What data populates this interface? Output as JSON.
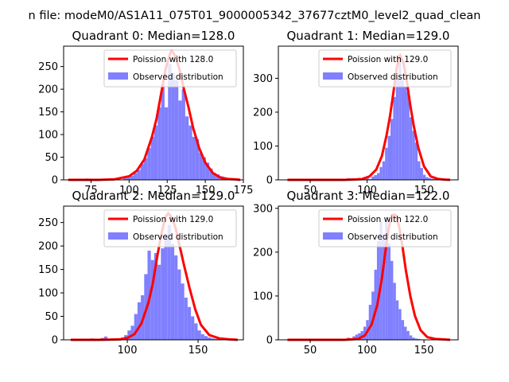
{
  "figure": {
    "suptitle": "n file: modeM0/AS1A11_075T01_9000005342_37677cztM0_level2_quad_clean"
  },
  "legend_labels": [
    "Poission with {median}",
    "Observed distribution"
  ],
  "colors": {
    "poisson": "#ff0000",
    "observed": "#8080ff"
  },
  "chart_data": [
    {
      "type": "bar",
      "title": "Quadrant 0: Median=128.0",
      "median": 128.0,
      "legend_poisson": "Poission with 128.0",
      "legend_observed": "Observed distribution",
      "xlim": [
        57,
        175
      ],
      "ylim": [
        0,
        295
      ],
      "xticks": [
        75,
        100,
        125,
        150,
        175
      ],
      "yticks": [
        0,
        50,
        100,
        150,
        200,
        250
      ],
      "hist_range": [
        60,
        173
      ],
      "n_bins": 50,
      "hist_peak": 250,
      "hist_center": 128,
      "hist_sigma": 11.5,
      "hist_noise": [
        0,
        1,
        0,
        0,
        2,
        3,
        0,
        0,
        1,
        2,
        0,
        1,
        0,
        1,
        0,
        0,
        4,
        6,
        9,
        15,
        22,
        35,
        48,
        70,
        95,
        120,
        160,
        210,
        160,
        255,
        235,
        220,
        175,
        200,
        140,
        120,
        95,
        90,
        60,
        50,
        38,
        25,
        15,
        12,
        8,
        5,
        3,
        2,
        1,
        0
      ],
      "curve_x": [
        60,
        70,
        80,
        90,
        100,
        105,
        110,
        115,
        118,
        121,
        124,
        127,
        128,
        130,
        133,
        136,
        139,
        142,
        146,
        150,
        155,
        160,
        165,
        170,
        173
      ],
      "curve_y": [
        0,
        0,
        0,
        1,
        8,
        20,
        45,
        95,
        135,
        190,
        245,
        280,
        285,
        275,
        245,
        200,
        160,
        115,
        70,
        38,
        15,
        5,
        2,
        1,
        0
      ]
    },
    {
      "type": "bar",
      "title": "Quadrant 1: Median=129.0",
      "median": 129.0,
      "legend_poisson": "Poission with 129.0",
      "legend_observed": "Observed distribution",
      "xlim": [
        22,
        180
      ],
      "ylim": [
        0,
        395
      ],
      "xticks": [
        50,
        100,
        150
      ],
      "yticks": [
        0,
        100,
        200,
        300
      ],
      "hist_range": [
        30,
        173
      ],
      "n_bins": 60,
      "hist_peak": 360,
      "hist_center": 130,
      "hist_sigma": 9.5,
      "hist_noise": [
        0,
        0,
        0,
        0,
        0,
        0,
        0,
        0,
        0,
        0,
        0,
        0,
        0,
        0,
        0,
        0,
        0,
        0,
        0,
        0,
        0,
        0,
        5,
        0,
        4,
        0,
        6,
        0,
        3,
        8,
        2,
        10,
        14,
        20,
        38,
        55,
        95,
        130,
        180,
        245,
        300,
        365,
        295,
        275,
        260,
        185,
        145,
        110,
        55,
        35,
        15,
        8,
        5,
        3,
        2,
        1,
        0,
        0,
        0,
        0
      ],
      "curve_x": [
        30,
        60,
        80,
        95,
        102,
        108,
        113,
        117,
        120,
        123,
        126,
        129,
        132,
        135,
        138,
        141,
        145,
        150,
        156,
        162,
        168,
        173
      ],
      "curve_y": [
        0,
        0,
        0,
        2,
        10,
        30,
        70,
        130,
        185,
        255,
        330,
        370,
        345,
        290,
        220,
        160,
        95,
        40,
        10,
        3,
        1,
        0
      ]
    },
    {
      "type": "bar",
      "title": "Quadrant 2: Median=129.0",
      "median": 129.0,
      "legend_poisson": "Poission with 129.0",
      "legend_observed": "Observed distribution",
      "xlim": [
        55,
        182
      ],
      "ylim": [
        0,
        285
      ],
      "xticks": [
        100,
        150
      ],
      "yticks": [
        0,
        50,
        100,
        150,
        200,
        250
      ],
      "hist_range": [
        60,
        178
      ],
      "n_bins": 50,
      "hist_peak": 250,
      "hist_center": 129,
      "hist_sigma": 12,
      "hist_noise": [
        0,
        1,
        0,
        0,
        2,
        0,
        3,
        0,
        1,
        4,
        7,
        0,
        2,
        1,
        0,
        5,
        10,
        20,
        30,
        55,
        80,
        95,
        140,
        190,
        170,
        185,
        160,
        195,
        225,
        245,
        205,
        180,
        150,
        120,
        90,
        70,
        50,
        35,
        20,
        12,
        8,
        5,
        3,
        2,
        1,
        0,
        0,
        0,
        0,
        0
      ],
      "curve_x": [
        60,
        80,
        95,
        100,
        105,
        110,
        115,
        118,
        121,
        124,
        127,
        129,
        131,
        134,
        137,
        140,
        144,
        148,
        152,
        158,
        165,
        172,
        178
      ],
      "curve_y": [
        0,
        0,
        1,
        4,
        12,
        35,
        80,
        120,
        175,
        225,
        262,
        270,
        262,
        240,
        200,
        160,
        110,
        65,
        32,
        10,
        3,
        1,
        0
      ]
    },
    {
      "type": "bar",
      "title": "Quadrant 3: Median=122.0",
      "median": 122.0,
      "legend_poisson": "Poission with 122.0",
      "legend_observed": "Observed distribution",
      "xlim": [
        22,
        180
      ],
      "ylim": [
        0,
        305
      ],
      "xticks": [
        50,
        100,
        150
      ],
      "yticks": [
        0,
        100,
        200,
        300
      ],
      "hist_range": [
        30,
        173
      ],
      "n_bins": 60,
      "hist_peak": 275,
      "hist_center": 122,
      "hist_sigma": 10,
      "hist_noise": [
        0,
        0,
        0,
        0,
        0,
        0,
        0,
        0,
        0,
        0,
        0,
        0,
        0,
        0,
        0,
        0,
        0,
        0,
        0,
        0,
        2,
        1,
        5,
        3,
        8,
        12,
        15,
        20,
        30,
        45,
        80,
        110,
        160,
        225,
        270,
        240,
        280,
        220,
        180,
        130,
        90,
        70,
        45,
        30,
        20,
        10,
        5,
        3,
        2,
        1,
        0,
        0,
        0,
        0,
        0,
        0,
        0,
        0,
        0,
        0
      ],
      "curve_x": [
        30,
        60,
        80,
        92,
        98,
        104,
        109,
        113,
        116,
        119,
        122,
        125,
        128,
        131,
        134,
        138,
        142,
        147,
        153,
        160,
        168,
        173
      ],
      "curve_y": [
        0,
        0,
        0,
        2,
        10,
        35,
        80,
        140,
        200,
        255,
        285,
        285,
        260,
        215,
        160,
        100,
        55,
        22,
        6,
        2,
        1,
        0
      ]
    }
  ]
}
